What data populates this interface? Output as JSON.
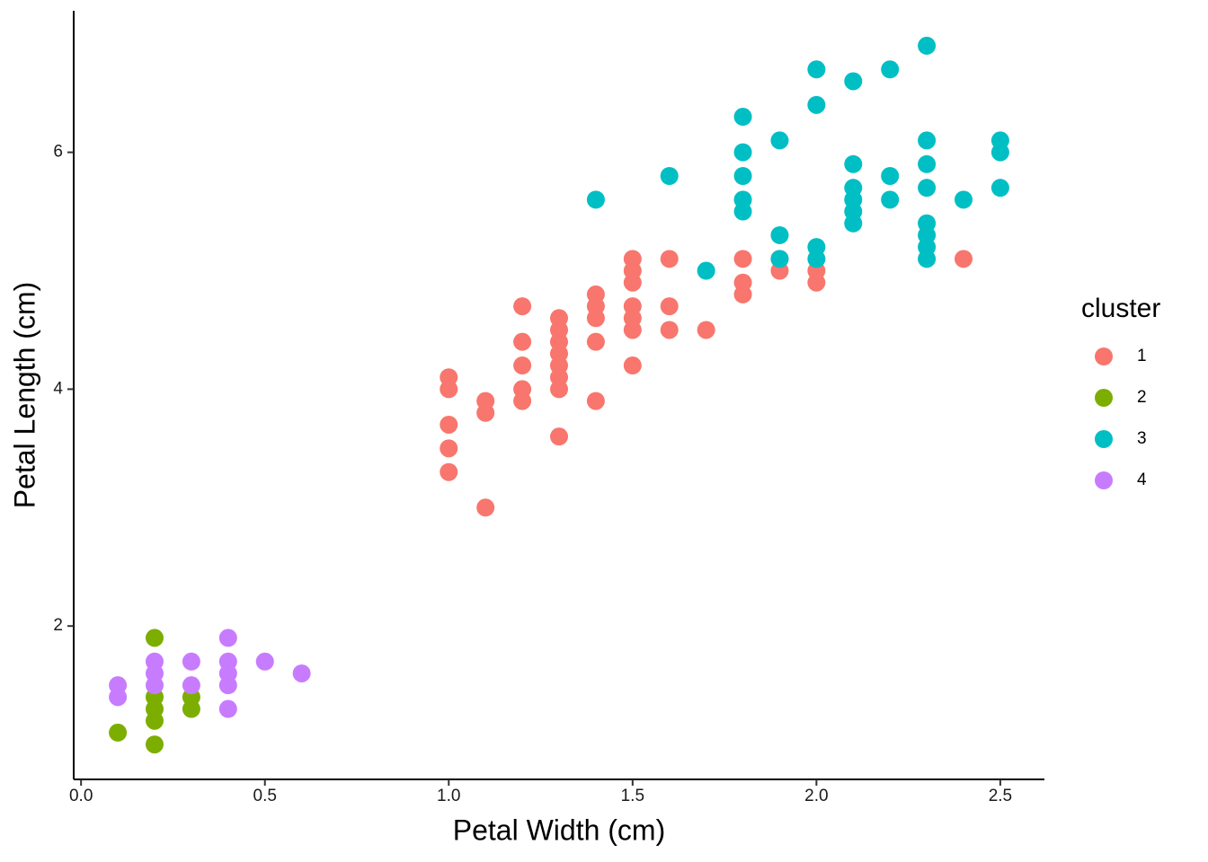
{
  "chart_data": {
    "type": "scatter",
    "x_label": "Petal Width (cm)",
    "y_label": "Petal Length (cm)",
    "legend_title": "cluster",
    "legend": "right",
    "grid": false,
    "xlim": [
      -0.02,
      2.62
    ],
    "ylim": [
      0.705,
      7.195
    ],
    "xticks": [
      {
        "value": 0,
        "label": "0.0"
      },
      0.5,
      {
        "value": 1,
        "label": "1.0"
      },
      1.5,
      {
        "value": 2,
        "label": "2.0"
      },
      2.5
    ],
    "yticks": [
      2,
      4,
      6
    ],
    "series": [
      {
        "name": "1",
        "color": "#F8766D",
        "x": [
          1.0,
          1.0,
          1.0,
          1.0,
          1.0,
          1.1,
          1.1,
          1.1,
          1.2,
          1.2,
          1.2,
          1.2,
          1.2,
          1.3,
          1.3,
          1.3,
          1.3,
          1.3,
          1.3,
          1.3,
          1.3,
          1.4,
          1.4,
          1.4,
          1.4,
          1.4,
          1.5,
          1.5,
          1.5,
          1.5,
          1.5,
          1.5,
          1.5,
          1.6,
          1.6,
          1.6,
          1.7,
          1.8,
          1.8,
          1.8,
          1.9,
          1.9,
          2.0,
          2.0,
          2.4
        ],
        "values": [
          4.1,
          4.0,
          3.7,
          3.5,
          3.3,
          3.9,
          3.8,
          3.0,
          4.7,
          4.4,
          4.2,
          4.0,
          3.9,
          4.6,
          4.5,
          4.4,
          4.3,
          4.2,
          4.1,
          4.0,
          3.6,
          4.8,
          4.7,
          4.6,
          4.4,
          3.9,
          5.1,
          5.0,
          4.9,
          4.7,
          4.6,
          4.5,
          4.2,
          5.1,
          4.7,
          4.5,
          4.5,
          5.1,
          4.9,
          4.8,
          5.1,
          5.0,
          5.0,
          4.9,
          5.1
        ]
      },
      {
        "name": "2",
        "color": "#7CAE00",
        "x": [
          0.2,
          0.2,
          0.2,
          0.2,
          0.2,
          0.1,
          0.3,
          0.3
        ],
        "values": [
          1.9,
          1.4,
          1.3,
          1.2,
          1.0,
          1.1,
          1.4,
          1.3
        ]
      },
      {
        "name": "3",
        "color": "#00BFC4",
        "x": [
          1.4,
          1.6,
          1.7,
          1.8,
          1.8,
          1.8,
          1.8,
          1.8,
          1.9,
          1.9,
          1.9,
          2.0,
          2.0,
          2.0,
          2.0,
          2.1,
          2.1,
          2.1,
          2.1,
          2.1,
          2.1,
          2.2,
          2.2,
          2.2,
          2.3,
          2.3,
          2.3,
          2.3,
          2.3,
          2.3,
          2.3,
          2.3,
          2.4,
          2.5,
          2.5,
          2.5
        ],
        "values": [
          5.6,
          5.8,
          5.0,
          6.3,
          6.0,
          5.8,
          5.6,
          5.5,
          6.1,
          5.3,
          5.1,
          6.7,
          6.4,
          5.2,
          5.1,
          6.6,
          5.9,
          5.7,
          5.6,
          5.5,
          5.4,
          6.7,
          5.8,
          5.6,
          6.9,
          6.1,
          5.9,
          5.7,
          5.4,
          5.3,
          5.2,
          5.1,
          5.6,
          6.1,
          6.0,
          5.7
        ]
      },
      {
        "name": "4",
        "color": "#C77CFF",
        "x": [
          0.1,
          0.1,
          0.2,
          0.2,
          0.2,
          0.3,
          0.3,
          0.4,
          0.4,
          0.4,
          0.4,
          0.4,
          0.5,
          0.6
        ],
        "values": [
          1.5,
          1.4,
          1.7,
          1.6,
          1.5,
          1.7,
          1.5,
          1.9,
          1.7,
          1.6,
          1.5,
          1.3,
          1.7,
          1.6
        ]
      }
    ]
  }
}
